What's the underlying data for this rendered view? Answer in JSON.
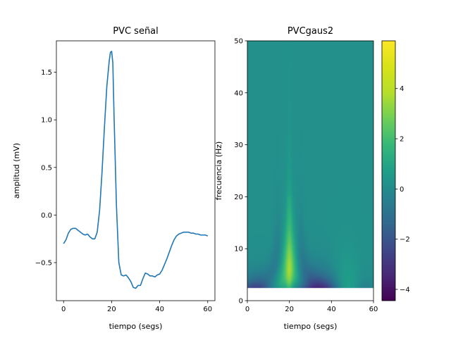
{
  "chart_data": [
    {
      "type": "line",
      "title": "PVC señal",
      "xlabel": "tiempo (segs)",
      "ylabel": "amplitud (mV)",
      "xlim": [
        -3,
        63
      ],
      "ylim": [
        -0.9,
        1.83
      ],
      "xticks": [
        0,
        20,
        40,
        60
      ],
      "yticks": [
        -0.5,
        0.0,
        0.5,
        1.0,
        1.5
      ],
      "ytick_labels": [
        "−0.5",
        "0.0",
        "0.5",
        "1.0",
        "1.5"
      ],
      "color": "#1f77b4",
      "series": [
        {
          "x": [
            0,
            1,
            2,
            3,
            4,
            5,
            6,
            7,
            8,
            9,
            10,
            11,
            12,
            13,
            14,
            15,
            16,
            17,
            18,
            19,
            19.5,
            20,
            20.5,
            21,
            22,
            23,
            24,
            25,
            26,
            27,
            28,
            29,
            30,
            31,
            32,
            33,
            34,
            35,
            36,
            37,
            38,
            39,
            40,
            41,
            42,
            43,
            44,
            45,
            46,
            47,
            48,
            49,
            50,
            51,
            52,
            53,
            54,
            55,
            56,
            57,
            58,
            59,
            60
          ],
          "y": [
            -0.3,
            -0.26,
            -0.19,
            -0.15,
            -0.14,
            -0.14,
            -0.16,
            -0.18,
            -0.2,
            -0.21,
            -0.2,
            -0.23,
            -0.25,
            -0.25,
            -0.18,
            0.05,
            0.45,
            0.92,
            1.35,
            1.62,
            1.71,
            1.72,
            1.6,
            1.05,
            0.1,
            -0.5,
            -0.63,
            -0.64,
            -0.63,
            -0.66,
            -0.7,
            -0.76,
            -0.77,
            -0.74,
            -0.74,
            -0.67,
            -0.61,
            -0.62,
            -0.64,
            -0.64,
            -0.65,
            -0.63,
            -0.62,
            -0.58,
            -0.52,
            -0.46,
            -0.39,
            -0.32,
            -0.26,
            -0.22,
            -0.2,
            -0.19,
            -0.18,
            -0.18,
            -0.18,
            -0.19,
            -0.19,
            -0.2,
            -0.2,
            -0.21,
            -0.21,
            -0.21,
            -0.22
          ]
        }
      ]
    },
    {
      "type": "heatmap",
      "title": "PVCgaus2",
      "xlabel": "tiempo (segs)",
      "ylabel": "frecuencia (Hz)",
      "xlim": [
        0,
        60
      ],
      "ylim": [
        0,
        50
      ],
      "xticks": [
        0,
        20,
        40,
        60
      ],
      "yticks": [
        0,
        10,
        20,
        30,
        40,
        50
      ],
      "colormap": "viridis",
      "colorbar": {
        "min": -4.45,
        "max": 5.9,
        "ticks": [
          -4,
          -2,
          0,
          2,
          4
        ],
        "tick_labels": [
          "−4",
          "−2",
          "0",
          "2",
          "4"
        ]
      },
      "freq_min": 2.4,
      "background_value": 0.2,
      "peak_time": 20,
      "peak_value": 5.9
    }
  ]
}
